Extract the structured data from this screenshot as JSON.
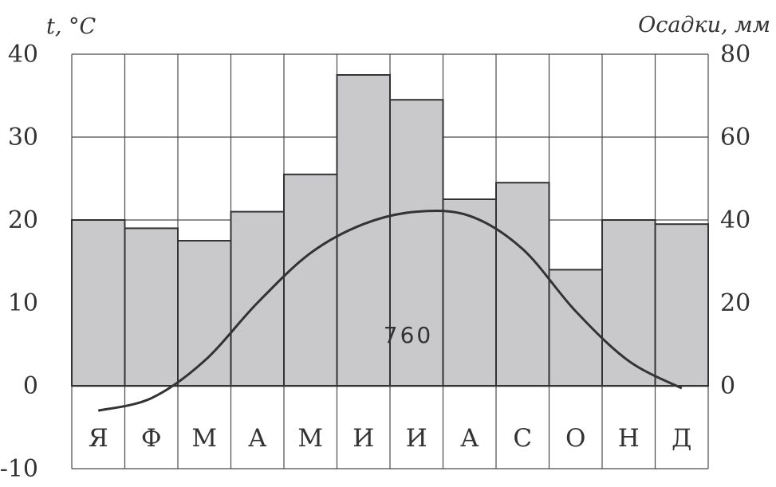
{
  "chart_data": {
    "type": "bar+line",
    "categories": [
      "Я",
      "Ф",
      "М",
      "А",
      "М",
      "И",
      "И",
      "А",
      "С",
      "О",
      "Н",
      "Д"
    ],
    "left_axis": {
      "label": "t, °C",
      "range": [
        -10,
        40
      ],
      "ticks": [
        "40",
        "30",
        "20",
        "10",
        "0",
        "-10"
      ]
    },
    "right_axis": {
      "label": "Осадки, мм",
      "range": [
        0,
        80
      ],
      "ticks": [
        "80",
        "60",
        "40",
        "20",
        "0"
      ]
    },
    "precipitation_mm": [
      40,
      38,
      35,
      42,
      51,
      75,
      69,
      45,
      49,
      28,
      40,
      39
    ],
    "temperature_c": [
      -3,
      -1.5,
      3,
      10,
      16,
      19.5,
      21,
      20.5,
      16.5,
      9,
      3,
      -0.3
    ],
    "annotation": "760",
    "grid": true
  },
  "colors": {
    "bar_fill": "#c9c9cb",
    "lines": "#333333",
    "background": "#ffffff"
  }
}
